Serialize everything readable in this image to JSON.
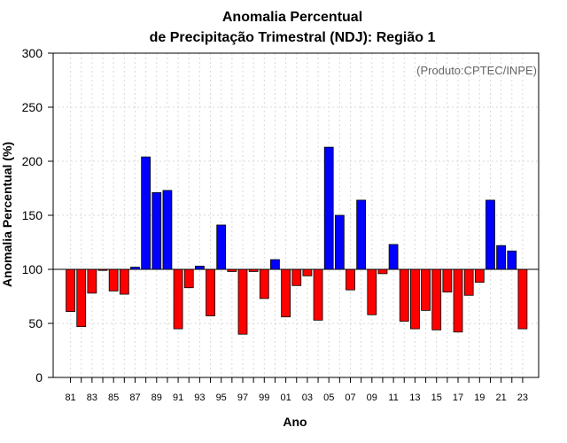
{
  "chart_data": {
    "type": "bar",
    "title_line1": "Anomalia Percentual",
    "title_line2": "de Precipitação Trimestral (NDJ): Região 1",
    "xlabel": "Ano",
    "ylabel": "Anomalia Percentual (%)",
    "credit": "(Produto:CPTEC/INPE)",
    "baseline": 100,
    "ylim": [
      0,
      300
    ],
    "yticks": [
      "0",
      "50",
      "100",
      "150",
      "200",
      "250",
      "300"
    ],
    "categories": [
      "81",
      "82",
      "83",
      "84",
      "85",
      "86",
      "87",
      "88",
      "89",
      "90",
      "91",
      "92",
      "93",
      "94",
      "95",
      "96",
      "97",
      "98",
      "99",
      "00",
      "01",
      "02",
      "03",
      "04",
      "05",
      "06",
      "07",
      "08",
      "09",
      "10",
      "11",
      "12",
      "13",
      "14",
      "15",
      "16",
      "17",
      "18",
      "19",
      "20",
      "21",
      "22",
      "23"
    ],
    "xtick_labels": [
      "81",
      "83",
      "85",
      "87",
      "89",
      "91",
      "93",
      "95",
      "97",
      "99",
      "01",
      "03",
      "05",
      "07",
      "09",
      "11",
      "13",
      "15",
      "17",
      "19",
      "21",
      "23"
    ],
    "values": [
      61,
      47,
      78,
      99,
      80,
      77,
      102,
      204,
      171,
      173,
      45,
      83,
      103,
      57,
      141,
      98,
      40,
      98,
      73,
      109,
      56,
      85,
      94,
      53,
      213,
      150,
      81,
      164,
      58,
      96,
      123,
      52,
      45,
      62,
      44,
      79,
      42,
      76,
      88,
      164,
      122,
      117,
      45
    ],
    "colors": {
      "above": "#0000ff",
      "below": "#ff0000",
      "grid": "#d9d9d9",
      "edge": "#000000"
    }
  }
}
